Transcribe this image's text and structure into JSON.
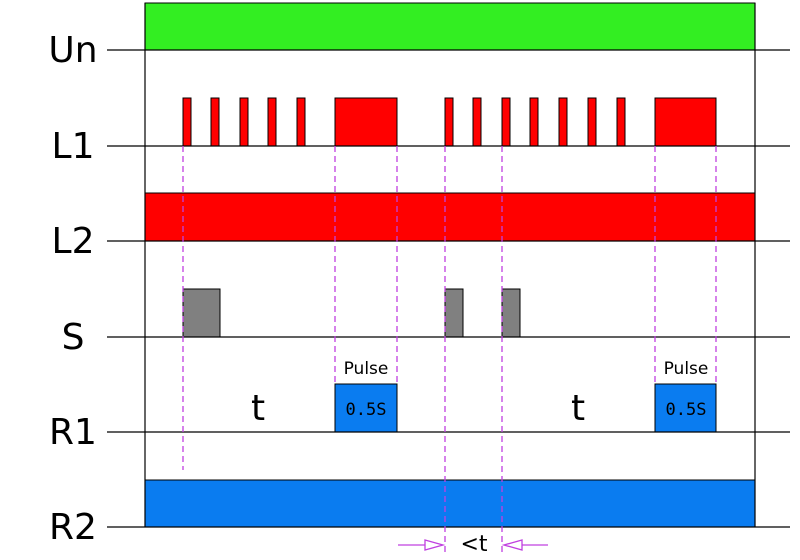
{
  "rows": [
    "Un",
    "L1",
    "L2",
    "S",
    "R1",
    "R2"
  ],
  "r1_pulses": [
    {
      "label": "Pulse",
      "duration": "0.5S"
    },
    {
      "label": "Pulse",
      "duration": "0.5S"
    }
  ],
  "delays": [
    "t",
    "t"
  ],
  "gap": "<t"
}
